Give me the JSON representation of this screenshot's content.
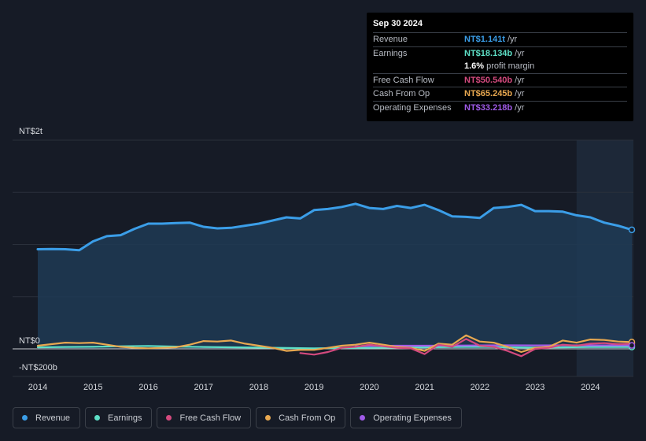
{
  "tooltip": {
    "date": "Sep 30 2024",
    "rows": [
      {
        "label": "Revenue",
        "value": "NT$1.141t",
        "unit": "/yr",
        "color": "#3b9ee8"
      },
      {
        "label": "Earnings",
        "value": "NT$18.134b",
        "unit": "/yr",
        "color": "#5ee0c7"
      },
      {
        "label": "",
        "value": "1.6%",
        "unit": "profit margin",
        "color": "#ffffff"
      },
      {
        "label": "Free Cash Flow",
        "value": "NT$50.540b",
        "unit": "/yr",
        "color": "#d44a7e"
      },
      {
        "label": "Cash From Op",
        "value": "NT$65.245b",
        "unit": "/yr",
        "color": "#e8a850"
      },
      {
        "label": "Operating Expenses",
        "value": "NT$33.218b",
        "unit": "/yr",
        "color": "#a05be8"
      }
    ]
  },
  "legend": [
    {
      "label": "Revenue",
      "color": "#3b9ee8"
    },
    {
      "label": "Earnings",
      "color": "#5ee0c7"
    },
    {
      "label": "Free Cash Flow",
      "color": "#d44a7e"
    },
    {
      "label": "Cash From Op",
      "color": "#e8a850"
    },
    {
      "label": "Operating Expenses",
      "color": "#a05be8"
    }
  ],
  "chart_data": {
    "type": "area",
    "title": "",
    "currency_unit": "NT$ billions",
    "ylim": [
      -200,
      2000
    ],
    "y_tick_labels": [
      {
        "value": 2000,
        "label": "NT$2t"
      },
      {
        "value": 0,
        "label": "NT$0"
      },
      {
        "value": -200,
        "label": "-NT$200b"
      }
    ],
    "x_tick_labels": [
      {
        "value": 2014,
        "label": "2014"
      },
      {
        "value": 2015,
        "label": "2015"
      },
      {
        "value": 2016,
        "label": "2016"
      },
      {
        "value": 2017,
        "label": "2017"
      },
      {
        "value": 2018,
        "label": "2018"
      },
      {
        "value": 2019,
        "label": "2019"
      },
      {
        "value": 2020,
        "label": "2020"
      },
      {
        "value": 2021,
        "label": "2021"
      },
      {
        "value": 2022,
        "label": "2022"
      },
      {
        "value": 2023,
        "label": "2023"
      },
      {
        "value": 2024,
        "label": "2024"
      }
    ],
    "xlim": [
      2013.55,
      2024.75
    ],
    "forecast_start": 2023.75,
    "series": [
      {
        "name": "Revenue",
        "color": "#3b9ee8",
        "points": [
          [
            2014.0,
            955
          ],
          [
            2014.25,
            957
          ],
          [
            2014.5,
            955
          ],
          [
            2014.75,
            945
          ],
          [
            2015.0,
            1030
          ],
          [
            2015.25,
            1080
          ],
          [
            2015.5,
            1090
          ],
          [
            2015.75,
            1150
          ],
          [
            2016.0,
            1200
          ],
          [
            2016.25,
            1200
          ],
          [
            2016.5,
            1205
          ],
          [
            2016.75,
            1210
          ],
          [
            2017.0,
            1170
          ],
          [
            2017.25,
            1155
          ],
          [
            2017.5,
            1160
          ],
          [
            2017.75,
            1180
          ],
          [
            2018.0,
            1200
          ],
          [
            2018.25,
            1230
          ],
          [
            2018.5,
            1260
          ],
          [
            2018.75,
            1250
          ],
          [
            2019.0,
            1330
          ],
          [
            2019.25,
            1340
          ],
          [
            2019.5,
            1360
          ],
          [
            2019.75,
            1390
          ],
          [
            2020.0,
            1350
          ],
          [
            2020.25,
            1340
          ],
          [
            2020.5,
            1370
          ],
          [
            2020.75,
            1350
          ],
          [
            2021.0,
            1380
          ],
          [
            2021.25,
            1330
          ],
          [
            2021.5,
            1270
          ],
          [
            2021.75,
            1265
          ],
          [
            2022.0,
            1255
          ],
          [
            2022.25,
            1350
          ],
          [
            2022.5,
            1360
          ],
          [
            2022.75,
            1380
          ],
          [
            2023.0,
            1320
          ],
          [
            2023.25,
            1320
          ],
          [
            2023.5,
            1315
          ],
          [
            2023.75,
            1280
          ],
          [
            2024.0,
            1260
          ],
          [
            2024.25,
            1210
          ],
          [
            2024.5,
            1180
          ],
          [
            2024.75,
            1141
          ]
        ]
      },
      {
        "name": "Earnings",
        "color": "#5ee0c7",
        "points": [
          [
            2014.0,
            15
          ],
          [
            2014.5,
            18
          ],
          [
            2015.0,
            20
          ],
          [
            2015.5,
            25
          ],
          [
            2016.0,
            28
          ],
          [
            2016.5,
            22
          ],
          [
            2017.0,
            18
          ],
          [
            2017.5,
            15
          ],
          [
            2018.0,
            12
          ],
          [
            2018.5,
            8
          ],
          [
            2019.0,
            5
          ],
          [
            2019.5,
            8
          ],
          [
            2020.0,
            10
          ],
          [
            2020.5,
            12
          ],
          [
            2021.0,
            15
          ],
          [
            2021.5,
            18
          ],
          [
            2022.0,
            20
          ],
          [
            2022.5,
            15
          ],
          [
            2023.0,
            12
          ],
          [
            2023.5,
            15
          ],
          [
            2024.0,
            18
          ],
          [
            2024.75,
            18
          ]
        ]
      },
      {
        "name": "Free Cash Flow",
        "color": "#d44a7e",
        "points": [
          [
            2018.75,
            -40
          ],
          [
            2019.0,
            -55
          ],
          [
            2019.25,
            -30
          ],
          [
            2019.5,
            10
          ],
          [
            2019.75,
            20
          ],
          [
            2020.0,
            40
          ],
          [
            2020.25,
            25
          ],
          [
            2020.5,
            10
          ],
          [
            2020.75,
            5
          ],
          [
            2021.0,
            -50
          ],
          [
            2021.25,
            40
          ],
          [
            2021.5,
            20
          ],
          [
            2021.75,
            95
          ],
          [
            2022.0,
            30
          ],
          [
            2022.25,
            20
          ],
          [
            2022.5,
            -20
          ],
          [
            2022.75,
            -70
          ],
          [
            2023.0,
            0
          ],
          [
            2023.25,
            10
          ],
          [
            2023.5,
            40
          ],
          [
            2023.75,
            30
          ],
          [
            2024.0,
            50
          ],
          [
            2024.25,
            55
          ],
          [
            2024.5,
            45
          ],
          [
            2024.75,
            50
          ]
        ]
      },
      {
        "name": "Cash From Op",
        "color": "#e8a850",
        "points": [
          [
            2014.0,
            30
          ],
          [
            2014.25,
            45
          ],
          [
            2014.5,
            60
          ],
          [
            2014.75,
            55
          ],
          [
            2015.0,
            60
          ],
          [
            2015.25,
            40
          ],
          [
            2015.5,
            20
          ],
          [
            2015.75,
            10
          ],
          [
            2016.0,
            5
          ],
          [
            2016.25,
            10
          ],
          [
            2016.5,
            15
          ],
          [
            2016.75,
            40
          ],
          [
            2017.0,
            75
          ],
          [
            2017.25,
            70
          ],
          [
            2017.5,
            80
          ],
          [
            2017.75,
            50
          ],
          [
            2018.0,
            30
          ],
          [
            2018.25,
            10
          ],
          [
            2018.5,
            -20
          ],
          [
            2018.75,
            -10
          ],
          [
            2019.0,
            -10
          ],
          [
            2019.25,
            10
          ],
          [
            2019.5,
            30
          ],
          [
            2019.75,
            40
          ],
          [
            2020.0,
            60
          ],
          [
            2020.25,
            40
          ],
          [
            2020.5,
            20
          ],
          [
            2020.75,
            10
          ],
          [
            2021.0,
            -20
          ],
          [
            2021.25,
            50
          ],
          [
            2021.5,
            40
          ],
          [
            2021.75,
            130
          ],
          [
            2022.0,
            70
          ],
          [
            2022.25,
            60
          ],
          [
            2022.5,
            20
          ],
          [
            2022.75,
            -30
          ],
          [
            2023.0,
            10
          ],
          [
            2023.25,
            20
          ],
          [
            2023.5,
            80
          ],
          [
            2023.75,
            60
          ],
          [
            2024.0,
            90
          ],
          [
            2024.25,
            85
          ],
          [
            2024.5,
            70
          ],
          [
            2024.75,
            65
          ]
        ]
      },
      {
        "name": "Operating Expenses",
        "color": "#a05be8",
        "points": [
          [
            2019.75,
            25
          ],
          [
            2020.0,
            28
          ],
          [
            2020.5,
            30
          ],
          [
            2021.0,
            30
          ],
          [
            2021.5,
            32
          ],
          [
            2022.0,
            33
          ],
          [
            2022.5,
            34
          ],
          [
            2023.0,
            33
          ],
          [
            2023.5,
            34
          ],
          [
            2024.0,
            33
          ],
          [
            2024.75,
            33
          ]
        ]
      }
    ]
  }
}
